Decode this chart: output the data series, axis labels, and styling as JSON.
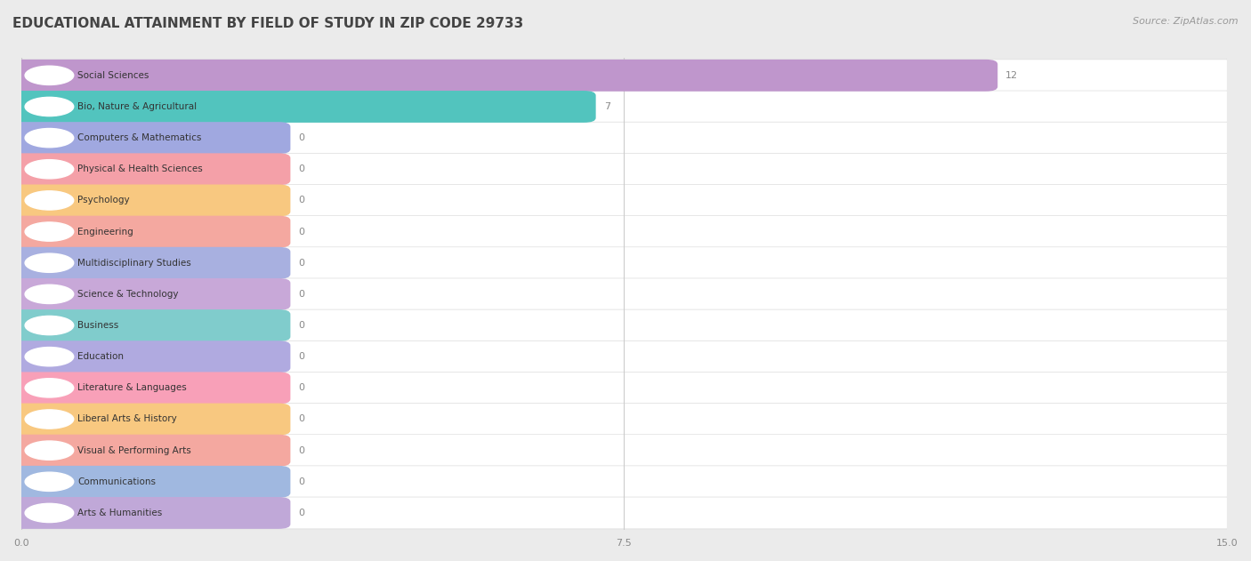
{
  "title": "EDUCATIONAL ATTAINMENT BY FIELD OF STUDY IN ZIP CODE 29733",
  "source": "Source: ZipAtlas.com",
  "categories": [
    "Social Sciences",
    "Bio, Nature & Agricultural",
    "Computers & Mathematics",
    "Physical & Health Sciences",
    "Psychology",
    "Engineering",
    "Multidisciplinary Studies",
    "Science & Technology",
    "Business",
    "Education",
    "Literature & Languages",
    "Liberal Arts & History",
    "Visual & Performing Arts",
    "Communications",
    "Arts & Humanities"
  ],
  "values": [
    12,
    7,
    0,
    0,
    0,
    0,
    0,
    0,
    0,
    0,
    0,
    0,
    0,
    0,
    0
  ],
  "bar_colors": [
    "#bf96cc",
    "#52c4be",
    "#a0a8e0",
    "#f4a0a8",
    "#f8c880",
    "#f4a8a0",
    "#a8b0e0",
    "#c8a8d8",
    "#80cccc",
    "#b0aae0",
    "#f8a0b8",
    "#f8c880",
    "#f4a8a0",
    "#a0b8e0",
    "#c0a8d8"
  ],
  "xlim": [
    0,
    15
  ],
  "xticks": [
    0,
    7.5,
    15
  ],
  "figure_bg": "#ebebeb",
  "row_bg": "#f5f5f5",
  "bar_bg": "#ffffff",
  "title_fontsize": 11,
  "source_fontsize": 8,
  "label_text_color": "#333333",
  "value_text_color": "#888888"
}
